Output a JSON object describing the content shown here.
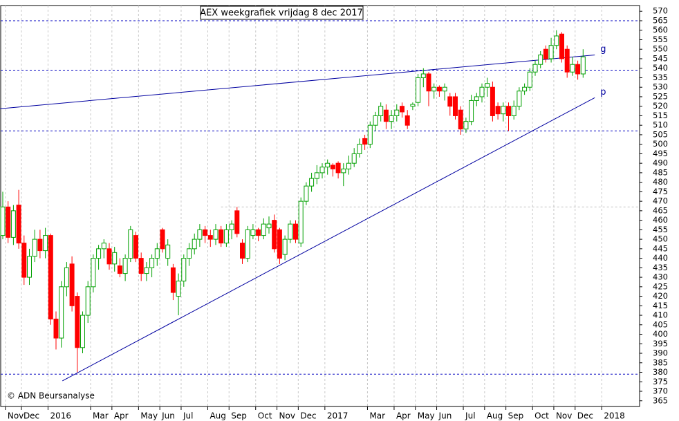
{
  "chart_data": {
    "type": "candlestick",
    "title": "AEX weekgrafiek vrijdag 8 dec 2017",
    "copyright": "© ADN Beursanalyse",
    "categories": [
      null,
      "Nov",
      null,
      null,
      "Dec",
      null,
      null,
      null,
      null,
      "2016",
      null,
      null,
      null,
      null,
      null,
      null,
      null,
      "Mar",
      null,
      null,
      null,
      "Apr",
      null,
      null,
      null,
      null,
      "May",
      null,
      null,
      null,
      "Jun",
      null,
      null,
      null,
      "Jul",
      null,
      null,
      null,
      null,
      "Aug",
      null,
      null,
      null,
      "Sep",
      null,
      null,
      null,
      null,
      "Oct",
      null,
      null,
      null,
      "Nov",
      null,
      null,
      null,
      "Dec",
      null,
      null,
      null,
      null,
      "2017",
      null,
      null,
      null,
      null,
      null,
      null,
      null,
      "Mar",
      null,
      null,
      null,
      null,
      "Apr",
      null,
      null,
      null,
      "May",
      null,
      null,
      null,
      "Jun",
      null,
      null,
      null,
      null,
      "Jul",
      null,
      null,
      null,
      "Aug",
      null,
      null,
      null,
      "Sep",
      null,
      null,
      null,
      null,
      "Oct",
      null,
      null,
      null,
      "Nov",
      null,
      null,
      null,
      "Dec",
      null,
      null,
      null,
      null,
      "2018",
      null
    ],
    "open": [
      452,
      467,
      451,
      468,
      448,
      430,
      441,
      450,
      444,
      452,
      408,
      398,
      425,
      437,
      420,
      393,
      410,
      425,
      440,
      445,
      445,
      437,
      436,
      432,
      440,
      452,
      440,
      432,
      435,
      440,
      455,
      440,
      435,
      420,
      428,
      440,
      445,
      450,
      455,
      452,
      450,
      455,
      448,
      455,
      465,
      448,
      440,
      452,
      455,
      452,
      456,
      460,
      455,
      442,
      450,
      458,
      448,
      470,
      478,
      482,
      485,
      488,
      489,
      490,
      485,
      487,
      490,
      495,
      503,
      500,
      510,
      515,
      518,
      512,
      515,
      520,
      515,
      520,
      522,
      535,
      537,
      528,
      530,
      528,
      525,
      525,
      518,
      508,
      512,
      523,
      525,
      530,
      530,
      520,
      516,
      520,
      515,
      520,
      528,
      530,
      538,
      542,
      550,
      545,
      552,
      558,
      550,
      538,
      542,
      537,
      null,
      null,
      null,
      null,
      null
    ],
    "high": [
      475,
      470,
      468,
      476,
      452,
      445,
      455,
      455,
      456,
      453,
      412,
      428,
      438,
      441,
      422,
      412,
      428,
      442,
      447,
      450,
      448,
      446,
      440,
      442,
      457,
      454,
      443,
      438,
      442,
      448,
      456,
      450,
      437,
      432,
      442,
      448,
      453,
      458,
      457,
      455,
      458,
      457,
      458,
      460,
      467,
      450,
      457,
      458,
      456,
      461,
      462,
      463,
      456,
      452,
      460,
      460,
      472,
      480,
      485,
      489,
      490,
      492,
      490,
      491,
      490,
      494,
      498,
      503,
      505,
      512,
      517,
      522,
      521,
      518,
      521,
      522,
      518,
      522,
      537,
      540,
      538,
      532,
      531,
      532,
      527,
      527,
      520,
      514,
      526,
      527,
      532,
      535,
      533,
      522,
      522,
      522,
      523,
      530,
      532,
      540,
      544,
      549,
      552,
      556,
      560,
      559,
      552,
      546,
      544,
      550,
      null,
      null,
      null,
      null,
      null
    ],
    "low": [
      450,
      448,
      447,
      445,
      426,
      426,
      438,
      440,
      440,
      405,
      392,
      393,
      420,
      412,
      380,
      390,
      406,
      422,
      434,
      440,
      434,
      433,
      430,
      428,
      438,
      438,
      428,
      428,
      430,
      436,
      443,
      436,
      418,
      410,
      425,
      436,
      442,
      446,
      448,
      446,
      447,
      446,
      446,
      450,
      451,
      437,
      438,
      450,
      449,
      450,
      453,
      443,
      437,
      439,
      448,
      448,
      446,
      468,
      475,
      479,
      482,
      484,
      483,
      482,
      478,
      484,
      488,
      493,
      497,
      498,
      507,
      512,
      508,
      508,
      512,
      514,
      508,
      518,
      520,
      530,
      520,
      524,
      525,
      523,
      515,
      513,
      505,
      506,
      510,
      520,
      522,
      525,
      512,
      513,
      512,
      507,
      513,
      518,
      526,
      528,
      536,
      540,
      543,
      543,
      550,
      543,
      535,
      536,
      534,
      535,
      null,
      null,
      null,
      null,
      null
    ],
    "close": [
      467,
      451,
      465,
      448,
      430,
      441,
      450,
      444,
      452,
      408,
      398,
      425,
      435,
      415,
      393,
      410,
      425,
      440,
      445,
      448,
      437,
      443,
      432,
      440,
      455,
      440,
      432,
      435,
      440,
      445,
      445,
      447,
      422,
      428,
      440,
      445,
      450,
      455,
      452,
      450,
      455,
      448,
      455,
      458,
      453,
      440,
      455,
      455,
      452,
      458,
      458,
      445,
      440,
      450,
      458,
      450,
      470,
      478,
      482,
      485,
      488,
      490,
      487,
      485,
      487,
      490,
      495,
      500,
      500,
      510,
      515,
      520,
      512,
      515,
      518,
      517,
      510,
      521,
      535,
      537,
      528,
      530,
      528,
      530,
      520,
      515,
      508,
      512,
      523,
      525,
      530,
      532,
      515,
      516,
      520,
      515,
      520,
      528,
      530,
      538,
      542,
      547,
      545,
      552,
      557,
      545,
      538,
      542,
      537,
      546,
      null,
      null,
      null,
      null,
      null
    ],
    "up_color": "#00a000",
    "down_color": "#ff0000",
    "ylim": [
      362,
      573
    ],
    "yticks": [
      365,
      370,
      375,
      380,
      385,
      390,
      395,
      400,
      405,
      410,
      415,
      420,
      425,
      430,
      435,
      440,
      445,
      450,
      455,
      460,
      465,
      470,
      475,
      480,
      485,
      490,
      495,
      500,
      505,
      510,
      515,
      520,
      525,
      530,
      535,
      540,
      545,
      550,
      555,
      560,
      565,
      570
    ],
    "grid": true,
    "hlines": [
      {
        "value": 565,
        "color": "#0000c0"
      },
      {
        "value": 539,
        "color": "#0000c0"
      },
      {
        "value": 507,
        "color": "#0000c0"
      },
      {
        "value": 379,
        "color": "#0000c0"
      },
      {
        "value": 467,
        "color": "#c0c0c0",
        "from": 41
      }
    ],
    "trendlines": [
      {
        "label": "g",
        "color": "#0000a0",
        "from": [
          -0.5,
          518.7
        ],
        "to": [
          111.2,
          547
        ]
      },
      {
        "label": "p",
        "color": "#0000a0",
        "from": [
          11.2,
          375.5
        ],
        "to": [
          111.2,
          524.5
        ]
      }
    ]
  }
}
